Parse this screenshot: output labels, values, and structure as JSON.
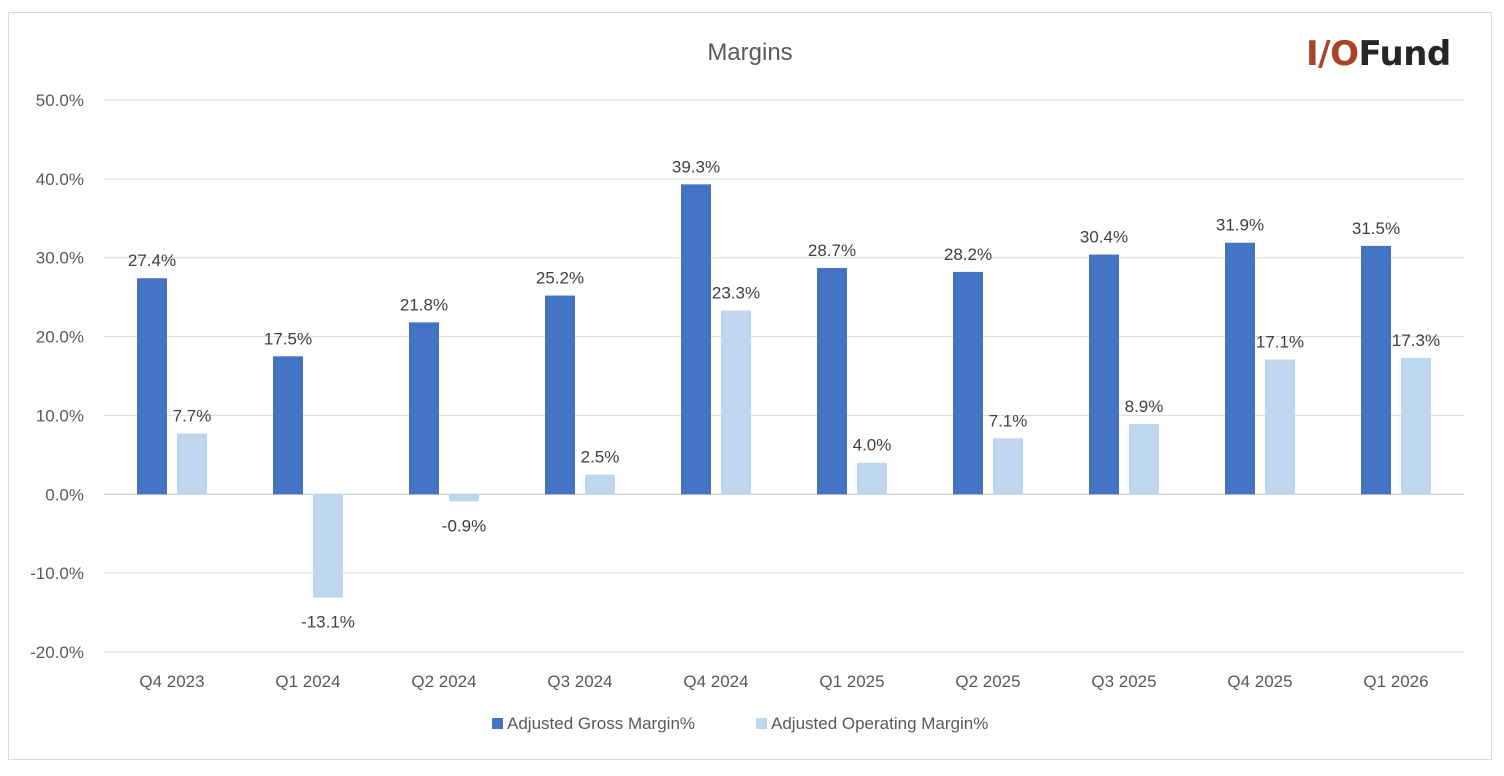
{
  "logo": {
    "io": "I/O",
    "fund": "Fund",
    "io_color": "#a8432a",
    "fund_color": "#262626"
  },
  "chart_data": {
    "type": "bar",
    "title": "Margins",
    "categories": [
      "Q4 2023",
      "Q1 2024",
      "Q2 2024",
      "Q3 2024",
      "Q4 2024",
      "Q1 2025",
      "Q2 2025",
      "Q3 2025",
      "Q4 2025",
      "Q1 2026"
    ],
    "series": [
      {
        "name": "Adjusted Gross Margin%",
        "color": "#4472c4",
        "values": [
          27.4,
          17.5,
          21.8,
          25.2,
          39.3,
          28.7,
          28.2,
          30.4,
          31.9,
          31.5
        ],
        "labels": [
          "27.4%",
          "17.5%",
          "21.8%",
          "25.2%",
          "39.3%",
          "28.7%",
          "28.2%",
          "30.4%",
          "31.9%",
          "31.5%"
        ]
      },
      {
        "name": "Adjusted Operating Margin%",
        "color": "#bdd7ee",
        "values": [
          7.7,
          -13.1,
          -0.9,
          2.5,
          23.3,
          4.0,
          7.1,
          8.9,
          17.1,
          17.3
        ],
        "labels": [
          "7.7%",
          "-13.1%",
          "-0.9%",
          "2.5%",
          "23.3%",
          "4.0%",
          "7.1%",
          "8.9%",
          "17.1%",
          "17.3%"
        ]
      }
    ],
    "ylim": [
      -20,
      50
    ],
    "yticks": [
      50,
      40,
      30,
      20,
      10,
      0,
      -10,
      -20
    ],
    "ytick_labels": [
      "50.0%",
      "40.0%",
      "30.0%",
      "20.0%",
      "10.0%",
      "0.0%",
      "-10.0%",
      "-20.0%"
    ],
    "grid": true,
    "legend_position": "bottom"
  }
}
